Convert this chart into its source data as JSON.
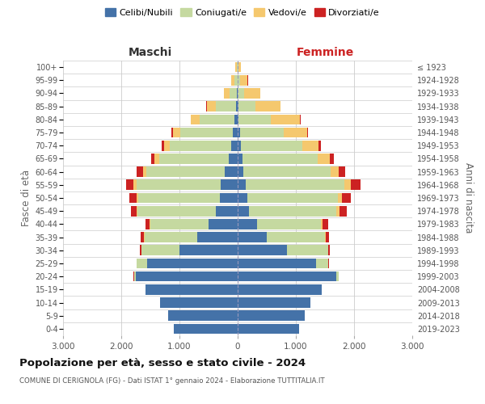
{
  "age_groups": [
    "0-4",
    "5-9",
    "10-14",
    "15-19",
    "20-24",
    "25-29",
    "30-34",
    "35-39",
    "40-44",
    "45-49",
    "50-54",
    "55-59",
    "60-64",
    "65-69",
    "70-74",
    "75-79",
    "80-84",
    "85-89",
    "90-94",
    "95-99",
    "100+"
  ],
  "birth_years": [
    "2019-2023",
    "2014-2018",
    "2009-2013",
    "2004-2008",
    "1999-2003",
    "1994-1998",
    "1989-1993",
    "1984-1988",
    "1979-1983",
    "1974-1978",
    "1969-1973",
    "1964-1968",
    "1959-1963",
    "1954-1958",
    "1949-1953",
    "1944-1948",
    "1939-1943",
    "1934-1938",
    "1929-1933",
    "1924-1928",
    "≤ 1923"
  ],
  "maschi": {
    "celibi": [
      1100,
      1200,
      1330,
      1580,
      1750,
      1550,
      1000,
      700,
      500,
      370,
      310,
      290,
      220,
      150,
      110,
      80,
      50,
      30,
      10,
      5,
      2
    ],
    "coniugati": [
      0,
      0,
      0,
      0,
      30,
      180,
      650,
      900,
      1000,
      1350,
      1400,
      1450,
      1350,
      1200,
      1050,
      900,
      600,
      350,
      130,
      50,
      15
    ],
    "vedovi": [
      0,
      0,
      0,
      0,
      0,
      0,
      5,
      10,
      15,
      20,
      30,
      50,
      60,
      80,
      100,
      130,
      150,
      150,
      100,
      50,
      20
    ],
    "divorziati": [
      0,
      0,
      0,
      0,
      5,
      10,
      20,
      50,
      70,
      100,
      120,
      130,
      100,
      60,
      40,
      30,
      10,
      5,
      2,
      1,
      0
    ]
  },
  "femmine": {
    "nubili": [
      1050,
      1150,
      1250,
      1450,
      1700,
      1350,
      850,
      500,
      330,
      200,
      170,
      140,
      100,
      80,
      60,
      40,
      20,
      10,
      5,
      3,
      2
    ],
    "coniugate": [
      0,
      0,
      0,
      0,
      30,
      200,
      700,
      1000,
      1100,
      1500,
      1550,
      1700,
      1500,
      1300,
      1050,
      750,
      550,
      300,
      100,
      40,
      10
    ],
    "vedove": [
      0,
      0,
      0,
      0,
      0,
      5,
      10,
      15,
      30,
      50,
      70,
      100,
      130,
      200,
      280,
      400,
      500,
      420,
      280,
      130,
      50
    ],
    "divorziate": [
      0,
      0,
      0,
      0,
      5,
      15,
      30,
      60,
      90,
      130,
      150,
      170,
      120,
      70,
      40,
      20,
      10,
      5,
      2,
      1,
      0
    ]
  },
  "colors": {
    "celibi": "#4472A8",
    "coniugati": "#C5D9A0",
    "vedovi": "#F5C86E",
    "divorziati": "#CC2222"
  },
  "legend_labels": [
    "Celibi/Nubili",
    "Coniugati/e",
    "Vedovi/e",
    "Divorziati/e"
  ],
  "legend_colors": [
    "#4472A8",
    "#C5D9A0",
    "#F5C86E",
    "#CC2222"
  ],
  "title": "Popolazione per età, sesso e stato civile - 2024",
  "subtitle": "COMUNE DI CERIGNOLA (FG) - Dati ISTAT 1° gennaio 2024 - Elaborazione TUTTITALIA.IT",
  "ylabel_left": "Fasce di età",
  "ylabel_right": "Anni di nascita",
  "xlabel_left": "Maschi",
  "xlabel_right": "Femmine",
  "xlim": 3000,
  "background_color": "#ffffff",
  "grid_color": "#cccccc"
}
